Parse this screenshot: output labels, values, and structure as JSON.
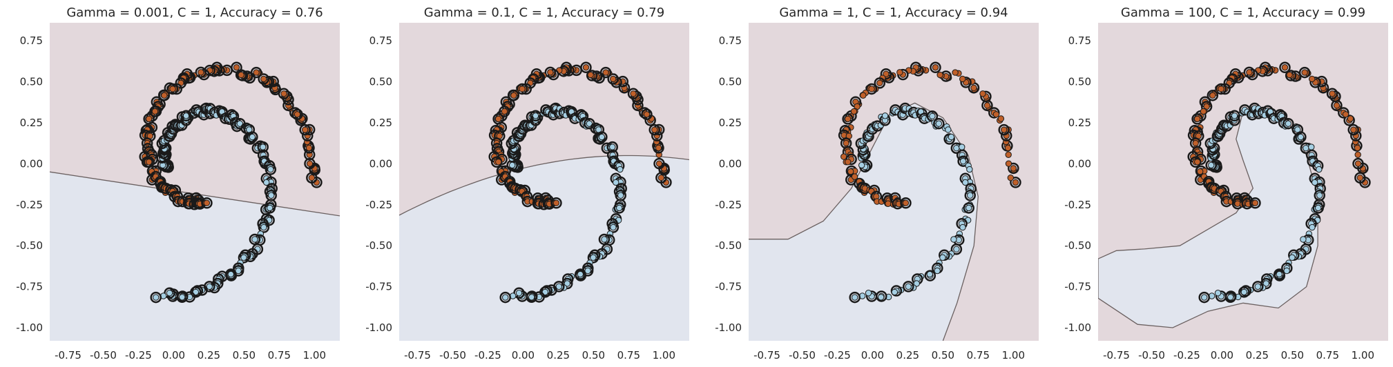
{
  "chart_data": [
    {
      "type": "scatter",
      "title": "Gamma = 0.001, C = 1, Accuracy = 0.76",
      "xlim": [
        -0.88,
        1.18
      ],
      "ylim": [
        -1.08,
        0.86
      ],
      "xticks": [
        "-0.75",
        "-0.50",
        "-0.25",
        "0.00",
        "0.25",
        "0.50",
        "0.75",
        "1.00"
      ],
      "yticks": [
        "0.75",
        "0.50",
        "0.25",
        "0.00",
        "-0.25",
        "-0.50",
        "-0.75",
        "-1.00"
      ],
      "grid": false,
      "series": [
        {
          "values": "orange spiral arm (upper class)"
        },
        {
          "values": "light blue spiral arm (lower class)"
        }
      ]
    },
    {
      "type": "scatter",
      "title": "Gamma = 0.1, C = 1, Accuracy = 0.79",
      "xlim": [
        -0.88,
        1.18
      ],
      "ylim": [
        -1.08,
        0.86
      ],
      "xticks": [
        "-0.75",
        "-0.50",
        "-0.25",
        "0.00",
        "0.25",
        "0.50",
        "0.75",
        "1.00"
      ],
      "yticks": [
        "0.75",
        "0.50",
        "0.25",
        "0.00",
        "-0.25",
        "-0.50",
        "-0.75",
        "-1.00"
      ],
      "grid": false
    },
    {
      "type": "scatter",
      "title": "Gamma = 1, C = 1, Accuracy = 0.94",
      "xlim": [
        -0.88,
        1.18
      ],
      "ylim": [
        -1.08,
        0.86
      ],
      "xticks": [
        "-0.75",
        "-0.50",
        "-0.25",
        "0.00",
        "0.25",
        "0.50",
        "0.75",
        "1.00"
      ],
      "yticks": [
        "0.75",
        "0.50",
        "0.25",
        "0.00",
        "-0.25",
        "-0.50",
        "-0.75",
        "-1.00"
      ],
      "grid": false
    },
    {
      "type": "scatter",
      "title": "Gamma = 100, C = 1, Accuracy = 0.99",
      "xlim": [
        -0.88,
        1.18
      ],
      "ylim": [
        -1.08,
        0.86
      ],
      "xticks": [
        "-0.75",
        "-0.50",
        "-0.25",
        "0.00",
        "0.25",
        "0.50",
        "0.75",
        "1.00"
      ],
      "yticks": [
        "0.75",
        "0.50",
        "0.25",
        "0.00",
        "-0.25",
        "-0.50",
        "-0.75",
        "-1.00"
      ],
      "grid": false
    }
  ],
  "colors": {
    "region_upper": "#e3d8dc",
    "region_lower": "#e1e5ee",
    "class_orange": "#c0602a",
    "class_blue": "#a6cfe3",
    "edge": "#1a1a1a",
    "boundary": "#6a6060"
  }
}
